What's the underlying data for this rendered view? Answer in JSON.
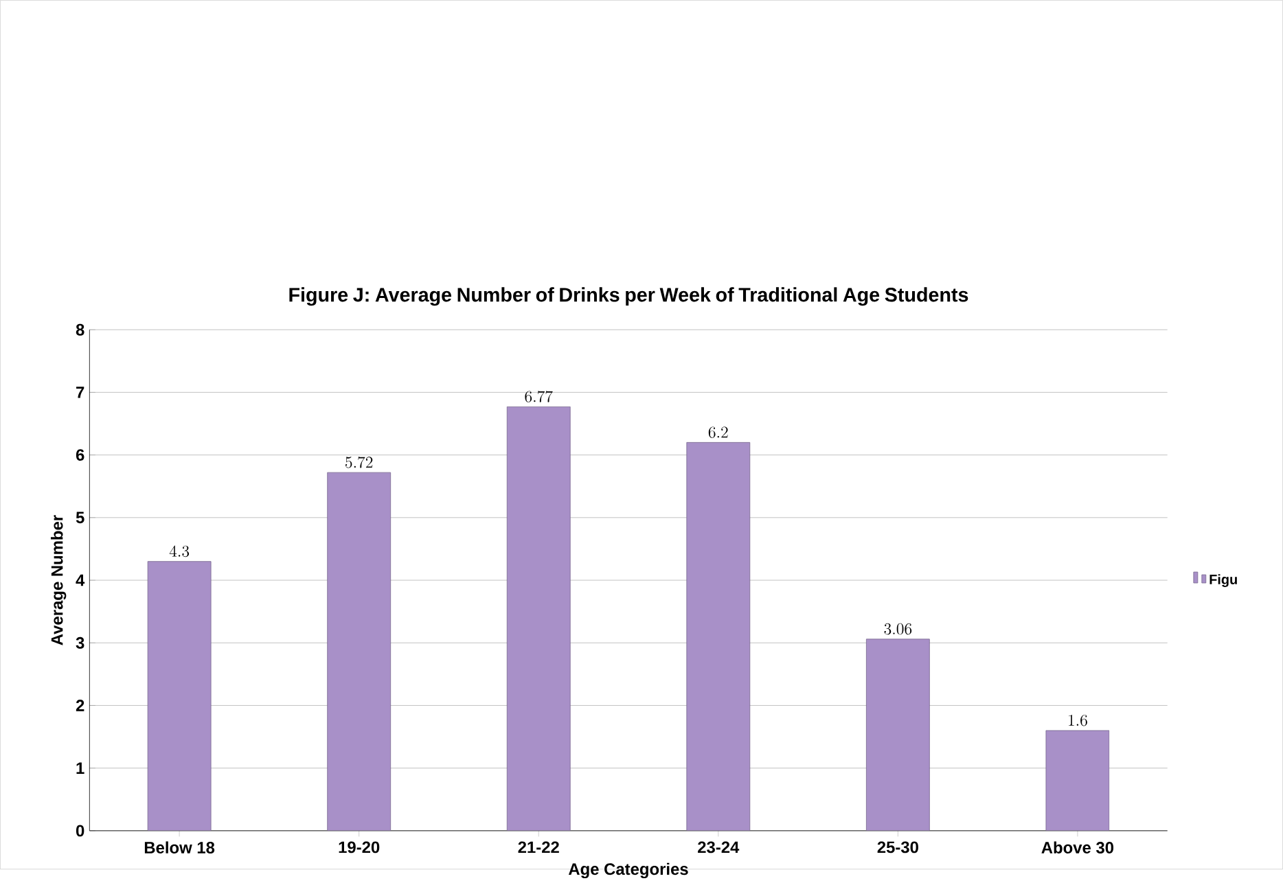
{
  "chart_data": {
    "type": "bar",
    "title": "Figure J: Average Number of Drinks per Week of Traditional Age Students",
    "xlabel": "Age Categories",
    "ylabel": "Average Number",
    "categories": [
      "Below 18",
      "19-20",
      "21-22",
      "23-24",
      "25-30",
      "Above 30"
    ],
    "series": [
      {
        "name": "Figu",
        "color": "#a890c8",
        "values": [
          4.3,
          5.72,
          6.77,
          6.2,
          3.06,
          1.6
        ]
      }
    ],
    "ylim": [
      0,
      8
    ],
    "yticks": [
      0,
      1,
      2,
      3,
      4,
      5,
      6,
      7,
      8
    ],
    "grid": "y",
    "legend": "right",
    "data_labels": true
  }
}
